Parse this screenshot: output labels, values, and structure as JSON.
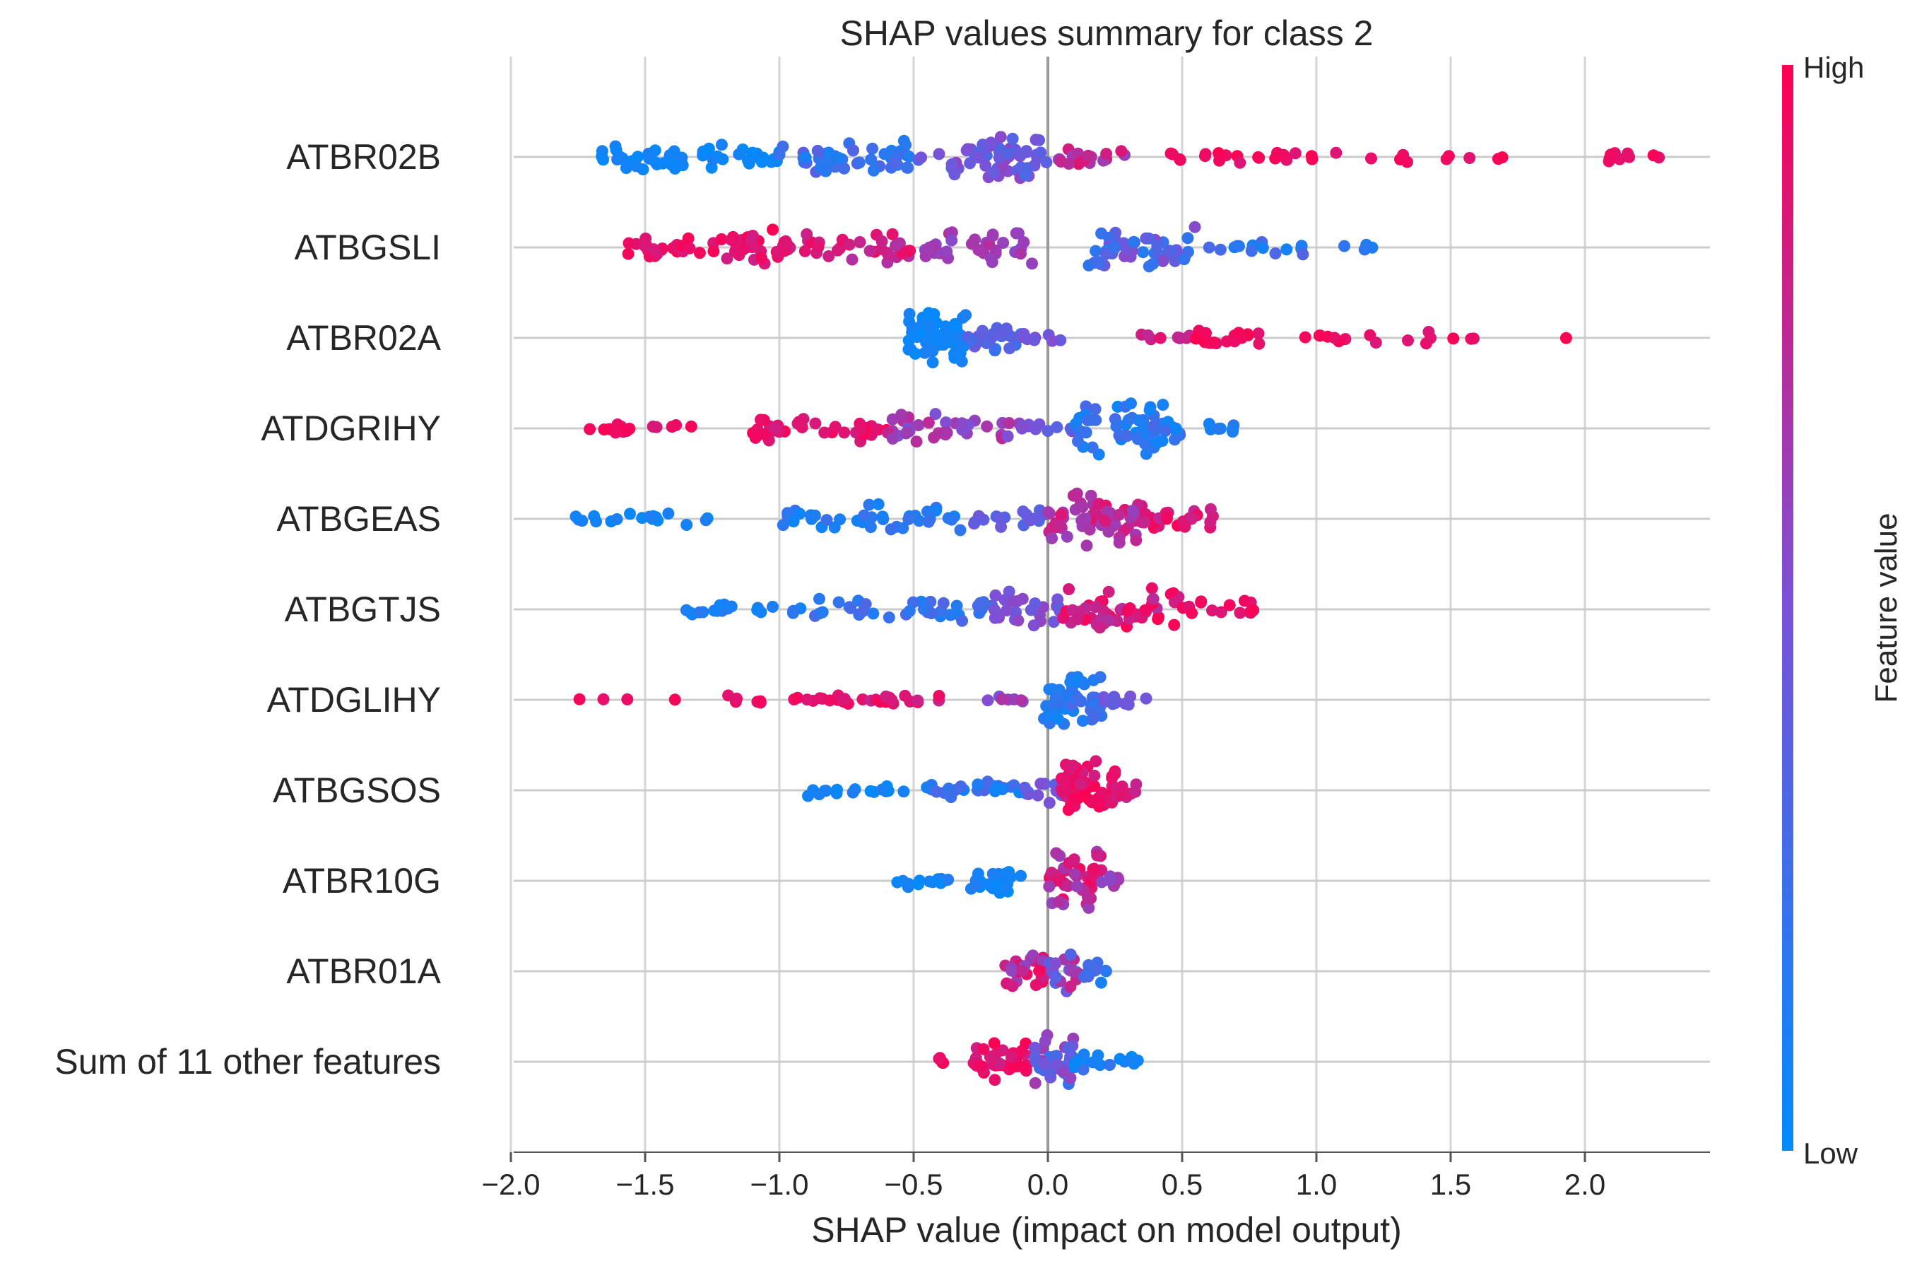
{
  "chart_data": {
    "type": "scatter",
    "subtype": "shap-beeswarm",
    "title": "SHAP values summary for class 2",
    "xlabel": "SHAP value (impact on model output)",
    "ylabel": "",
    "xlim": [
      -2.0,
      2.45
    ],
    "xticks": [
      -2.0,
      -1.5,
      -1.0,
      -0.5,
      0.0,
      0.5,
      1.0,
      1.5,
      2.0
    ],
    "xtick_labels": [
      "−2.0",
      "−1.5",
      "−1.0",
      "−0.5",
      "0.0",
      "0.5",
      "1.0",
      "1.5",
      "2.0"
    ],
    "grid": true,
    "zero_line": true,
    "colorbar": {
      "label": "Feature value",
      "high_label": "High",
      "low_label": "Low",
      "high_color": "#ff0052",
      "low_color": "#008bfb"
    },
    "features": [
      {
        "name": "ATBR02B",
        "clusters": [
          {
            "x": [
              -1.67,
              -1.0
            ],
            "n": 55,
            "v": [
              0.0,
              0.12
            ],
            "w": 22
          },
          {
            "x": [
              -1.0,
              -0.5
            ],
            "n": 45,
            "v": [
              0.1,
              0.4
            ],
            "w": 32
          },
          {
            "x": [
              -0.5,
              0.0
            ],
            "n": 55,
            "v": [
              0.3,
              0.6
            ],
            "w": 36
          },
          {
            "x": [
              0.0,
              0.3
            ],
            "n": 20,
            "v": [
              0.55,
              0.9
            ],
            "w": 14
          },
          {
            "x": [
              0.45,
              1.15
            ],
            "n": 22,
            "v": [
              0.85,
              1.0
            ],
            "w": 10
          },
          {
            "x": [
              1.2,
              1.7
            ],
            "n": 9,
            "v": [
              0.88,
              1.0
            ],
            "w": 8
          },
          {
            "x": [
              2.05,
              2.28
            ],
            "n": 10,
            "v": [
              0.9,
              1.0
            ],
            "w": 8
          }
        ]
      },
      {
        "name": "ATBGSLI",
        "clusters": [
          {
            "x": [
              -1.57,
              -1.2
            ],
            "n": 25,
            "v": [
              0.85,
              1.0
            ],
            "w": 14
          },
          {
            "x": [
              -1.2,
              -0.75
            ],
            "n": 45,
            "v": [
              0.8,
              1.0
            ],
            "w": 28
          },
          {
            "x": [
              -0.75,
              -0.5
            ],
            "n": 20,
            "v": [
              0.7,
              0.95
            ],
            "w": 22
          },
          {
            "x": [
              -0.5,
              -0.05
            ],
            "n": 35,
            "v": [
              0.55,
              0.75
            ],
            "w": 28
          },
          {
            "x": [
              0.15,
              0.55
            ],
            "n": 50,
            "v": [
              0.15,
              0.55
            ],
            "w": 36
          },
          {
            "x": [
              0.55,
              0.95
            ],
            "n": 14,
            "v": [
              0.05,
              0.35
            ],
            "w": 12
          },
          {
            "x": [
              1.1,
              1.32
            ],
            "n": 4,
            "v": [
              0.0,
              0.2
            ],
            "w": 6
          }
        ]
      },
      {
        "name": "ATBR02A",
        "clusters": [
          {
            "x": [
              -0.52,
              -0.3
            ],
            "n": 80,
            "v": [
              0.0,
              0.12
            ],
            "w": 40
          },
          {
            "x": [
              -0.3,
              -0.1
            ],
            "n": 25,
            "v": [
              0.2,
              0.45
            ],
            "w": 20
          },
          {
            "x": [
              -0.1,
              0.05
            ],
            "n": 8,
            "v": [
              0.4,
              0.55
            ],
            "w": 8
          },
          {
            "x": [
              0.33,
              0.55
            ],
            "n": 10,
            "v": [
              0.75,
              0.95
            ],
            "w": 6
          },
          {
            "x": [
              0.55,
              0.8
            ],
            "n": 22,
            "v": [
              0.85,
              1.0
            ],
            "w": 14
          },
          {
            "x": [
              0.95,
              1.6
            ],
            "n": 16,
            "v": [
              0.85,
              1.0
            ],
            "w": 10
          },
          {
            "x": [
              1.93,
              1.93
            ],
            "n": 1,
            "v": [
              0.95,
              1.0
            ],
            "w": 1
          }
        ]
      },
      {
        "name": "ATDGRIHY",
        "clusters": [
          {
            "x": [
              -1.72,
              -1.3
            ],
            "n": 16,
            "v": [
              0.85,
              1.0
            ],
            "w": 10
          },
          {
            "x": [
              -1.1,
              -0.6
            ],
            "n": 35,
            "v": [
              0.8,
              1.0
            ],
            "w": 20
          },
          {
            "x": [
              -0.6,
              -0.1
            ],
            "n": 35,
            "v": [
              0.5,
              0.8
            ],
            "w": 26
          },
          {
            "x": [
              -0.1,
              0.1
            ],
            "n": 12,
            "v": [
              0.3,
              0.55
            ],
            "w": 12
          },
          {
            "x": [
              0.1,
              0.5
            ],
            "n": 60,
            "v": [
              0.05,
              0.3
            ],
            "w": 44
          },
          {
            "x": [
              0.6,
              0.7
            ],
            "n": 7,
            "v": [
              0.05,
              0.2
            ],
            "w": 8
          }
        ]
      },
      {
        "name": "ATBGEAS",
        "clusters": [
          {
            "x": [
              -1.82,
              -1.2
            ],
            "n": 18,
            "v": [
              0.0,
              0.12
            ],
            "w": 10
          },
          {
            "x": [
              -1.0,
              -0.3
            ],
            "n": 40,
            "v": [
              0.05,
              0.25
            ],
            "w": 22
          },
          {
            "x": [
              -0.3,
              0.0
            ],
            "n": 18,
            "v": [
              0.3,
              0.5
            ],
            "w": 16
          },
          {
            "x": [
              0.0,
              0.35
            ],
            "n": 60,
            "v": [
              0.6,
              0.9
            ],
            "w": 44
          },
          {
            "x": [
              0.35,
              0.64
            ],
            "n": 25,
            "v": [
              0.75,
              1.0
            ],
            "w": 22
          }
        ]
      },
      {
        "name": "ATBGTJS",
        "clusters": [
          {
            "x": [
              -1.4,
              -0.9
            ],
            "n": 20,
            "v": [
              0.0,
              0.2
            ],
            "w": 10
          },
          {
            "x": [
              -0.9,
              -0.2
            ],
            "n": 35,
            "v": [
              0.1,
              0.35
            ],
            "w": 18
          },
          {
            "x": [
              -0.2,
              0.05
            ],
            "n": 30,
            "v": [
              0.4,
              0.6
            ],
            "w": 30
          },
          {
            "x": [
              0.05,
              0.5
            ],
            "n": 50,
            "v": [
              0.7,
              1.0
            ],
            "w": 36
          },
          {
            "x": [
              0.5,
              0.79
            ],
            "n": 14,
            "v": [
              0.85,
              1.0
            ],
            "w": 14
          }
        ]
      },
      {
        "name": "ATDGLIHY",
        "clusters": [
          {
            "x": [
              -1.8,
              -1.37
            ],
            "n": 4,
            "v": [
              0.9,
              1.0
            ],
            "w": 2
          },
          {
            "x": [
              -1.2,
              -0.7
            ],
            "n": 18,
            "v": [
              0.85,
              1.0
            ],
            "w": 8
          },
          {
            "x": [
              -0.7,
              -0.4
            ],
            "n": 16,
            "v": [
              0.75,
              1.0
            ],
            "w": 8
          },
          {
            "x": [
              -0.25,
              -0.05
            ],
            "n": 7,
            "v": [
              0.45,
              0.7
            ],
            "w": 8
          },
          {
            "x": [
              -0.02,
              0.2
            ],
            "n": 50,
            "v": [
              0.05,
              0.3
            ],
            "w": 44
          },
          {
            "x": [
              0.2,
              0.37
            ],
            "n": 14,
            "v": [
              0.3,
              0.5
            ],
            "w": 14
          }
        ]
      },
      {
        "name": "ATBGSOS",
        "clusters": [
          {
            "x": [
              -0.93,
              -0.45
            ],
            "n": 18,
            "v": [
              0.0,
              0.15
            ],
            "w": 10
          },
          {
            "x": [
              -0.45,
              -0.05
            ],
            "n": 30,
            "v": [
              0.05,
              0.35
            ],
            "w": 18
          },
          {
            "x": [
              -0.1,
              0.08
            ],
            "n": 14,
            "v": [
              0.35,
              0.55
            ],
            "w": 18
          },
          {
            "x": [
              0.05,
              0.25
            ],
            "n": 55,
            "v": [
              0.8,
              1.0
            ],
            "w": 46
          },
          {
            "x": [
              0.25,
              0.33
            ],
            "n": 10,
            "v": [
              0.75,
              0.95
            ],
            "w": 14
          }
        ]
      },
      {
        "name": "ATBR10G",
        "clusters": [
          {
            "x": [
              -0.58,
              -0.3
            ],
            "n": 14,
            "v": [
              0.0,
              0.15
            ],
            "w": 10
          },
          {
            "x": [
              -0.3,
              -0.08
            ],
            "n": 26,
            "v": [
              0.0,
              0.15
            ],
            "w": 24
          },
          {
            "x": [
              0.0,
              0.2
            ],
            "n": 50,
            "v": [
              0.6,
              0.95
            ],
            "w": 44
          },
          {
            "x": [
              0.2,
              0.27
            ],
            "n": 8,
            "v": [
              0.5,
              0.8
            ],
            "w": 10
          }
        ]
      },
      {
        "name": "ATBR01A",
        "clusters": [
          {
            "x": [
              -0.17,
              0.0
            ],
            "n": 30,
            "v": [
              0.55,
              1.0
            ],
            "w": 30
          },
          {
            "x": [
              0.0,
              0.12
            ],
            "n": 18,
            "v": [
              0.3,
              0.8
            ],
            "w": 30
          },
          {
            "x": [
              0.12,
              0.22
            ],
            "n": 12,
            "v": [
              0.1,
              0.4
            ],
            "w": 18
          }
        ]
      },
      {
        "name": "Sum of 11 other features",
        "clusters": [
          {
            "x": [
              -0.41,
              -0.39
            ],
            "n": 4,
            "v": [
              0.9,
              1.0
            ],
            "w": 8
          },
          {
            "x": [
              -0.28,
              -0.05
            ],
            "n": 40,
            "v": [
              0.8,
              1.0
            ],
            "w": 36
          },
          {
            "x": [
              -0.05,
              0.1
            ],
            "n": 35,
            "v": [
              0.2,
              0.7
            ],
            "w": 40
          },
          {
            "x": [
              0.1,
              0.34
            ],
            "n": 16,
            "v": [
              0.0,
              0.25
            ],
            "w": 14
          }
        ]
      }
    ]
  }
}
